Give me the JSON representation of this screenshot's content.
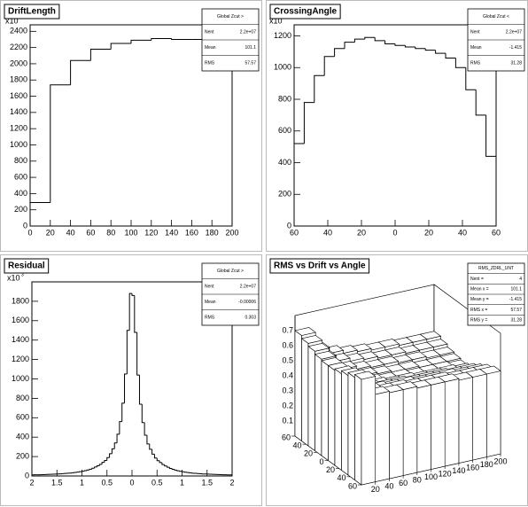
{
  "chart_data": [
    {
      "type": "histogram",
      "title": "DriftLength",
      "color": "#000000",
      "bins": [
        0,
        20,
        40,
        60,
        80,
        100,
        120,
        140,
        160,
        180,
        200
      ],
      "values": [
        290,
        1740,
        2040,
        2180,
        2250,
        2290,
        2310,
        2300,
        2300,
        2300
      ],
      "xlim": [
        0,
        200
      ],
      "xticks": [
        0,
        20,
        40,
        60,
        80,
        100,
        120,
        140,
        160,
        180,
        200
      ],
      "ylim": [
        0,
        2480
      ],
      "yticks": [
        0,
        200,
        400,
        600,
        800,
        1000,
        1200,
        1400,
        1600,
        1800,
        2000,
        2200,
        2400
      ],
      "y_multiplier": {
        "base": "x10",
        "exponent": "3"
      },
      "stats": {
        "title": "Global Zcut >",
        "rows": [
          [
            "Nent",
            "2.2e+07"
          ],
          [
            "Mean",
            "101.1"
          ],
          [
            "RMS",
            "57.57"
          ]
        ]
      }
    },
    {
      "type": "histogram",
      "title": "CrossingAngle",
      "color": "#000000",
      "bins": [
        -60,
        -54,
        -48,
        -42,
        -36,
        -30,
        -24,
        -18,
        -12,
        -6,
        0,
        6,
        12,
        18,
        24,
        30,
        36,
        42,
        48,
        54,
        60
      ],
      "values": [
        520,
        780,
        950,
        1070,
        1120,
        1160,
        1180,
        1190,
        1170,
        1150,
        1140,
        1130,
        1120,
        1110,
        1090,
        1060,
        1000,
        860,
        700,
        440
      ],
      "xlim": [
        -60,
        60
      ],
      "xticks": [
        {
          "value": -60,
          "label": "60"
        },
        {
          "value": -40,
          "label": "40"
        },
        {
          "value": -20,
          "label": "20"
        },
        0,
        20,
        40,
        60
      ],
      "ylim": [
        0,
        1270
      ],
      "yticks": [
        0,
        200,
        400,
        600,
        800,
        1000,
        1200
      ],
      "y_multiplier": {
        "base": "x10",
        "exponent": "3"
      },
      "stats": {
        "title": "Global Zcut <",
        "rows": [
          [
            "Nent",
            "2.2e+07"
          ],
          [
            "Mean",
            "-1.415"
          ],
          [
            "RMS",
            "31.28"
          ]
        ]
      }
    },
    {
      "type": "histogram",
      "title": "Residual",
      "color": "#000000",
      "bins": [
        -2,
        -1.95,
        -1.9,
        -1.85,
        -1.8,
        -1.75,
        -1.7,
        -1.65,
        -1.6,
        -1.55,
        -1.5,
        -1.45,
        -1.4,
        -1.35,
        -1.3,
        -1.25,
        -1.2,
        -1.15,
        -1.1,
        -1.05,
        -1,
        -0.95,
        -0.9,
        -0.85,
        -0.8,
        -0.75,
        -0.7,
        -0.65,
        -0.6,
        -0.55,
        -0.5,
        -0.45,
        -0.4,
        -0.35,
        -0.3,
        -0.25,
        -0.2,
        -0.15,
        -0.1,
        -0.05,
        0,
        0.05,
        0.1,
        0.15,
        0.2,
        0.25,
        0.3,
        0.35,
        0.4,
        0.45,
        0.5,
        0.55,
        0.6,
        0.65,
        0.7,
        0.75,
        0.8,
        0.85,
        0.9,
        0.95,
        1,
        1.05,
        1.1,
        1.15,
        1.2,
        1.25,
        1.3,
        1.35,
        1.4,
        1.45,
        1.5,
        1.55,
        1.6,
        1.65,
        1.7,
        1.75,
        1.8,
        1.85,
        1.9,
        1.95,
        2
      ],
      "values": [
        11,
        12,
        12,
        13,
        14,
        15,
        16,
        17,
        18,
        19,
        20,
        22,
        24,
        26,
        28,
        30,
        33,
        36,
        40,
        44,
        49,
        55,
        62,
        70,
        80,
        92,
        105,
        120,
        140,
        160,
        190,
        230,
        280,
        340,
        430,
        560,
        750,
        1050,
        1500,
        1880,
        1860,
        1480,
        1040,
        740,
        550,
        420,
        330,
        275,
        225,
        185,
        158,
        138,
        118,
        103,
        90,
        78,
        69,
        61,
        54,
        48,
        43,
        39,
        35,
        32,
        29,
        27,
        25,
        23,
        21,
        20,
        19,
        18,
        17,
        16,
        15,
        14,
        13,
        12,
        11,
        11
      ],
      "xlim": [
        -2,
        2
      ],
      "xticks": [
        {
          "value": -2,
          "label": "2"
        },
        {
          "value": -1.5,
          "label": "1.5"
        },
        {
          "value": -1,
          "label": "1"
        },
        {
          "value": -0.5,
          "label": "0.5"
        },
        0,
        0.5,
        1,
        1.5,
        2
      ],
      "ylim": [
        0,
        2000
      ],
      "yticks": [
        0,
        200,
        400,
        600,
        800,
        1000,
        1200,
        1400,
        1600,
        1800
      ],
      "y_multiplier": {
        "base": "x10",
        "exponent": "3"
      },
      "stats": {
        "title": "Global Zcut >",
        "rows": [
          [
            "Nent",
            "2.2e+07"
          ],
          [
            "Mean",
            "-0.00006"
          ],
          [
            "RMS",
            "0.303"
          ]
        ]
      }
    },
    {
      "type": "lego",
      "title": "RMS vs Drift vs Angle",
      "color": "#ffffff",
      "x_bins": [
        0,
        20,
        40,
        60,
        80,
        100,
        120,
        140,
        160,
        180,
        200
      ],
      "y_bins": [
        -60,
        -48,
        -36,
        -24,
        -12,
        0,
        12,
        24,
        36,
        48,
        60
      ],
      "z": [
        [
          0.7,
          0.58,
          0.57,
          0.57,
          0.56,
          0.56,
          0.56,
          0.55,
          0.55,
          0.55
        ],
        [
          0.68,
          0.57,
          0.55,
          0.55,
          0.54,
          0.54,
          0.54,
          0.53,
          0.53,
          0.53
        ],
        [
          0.66,
          0.55,
          0.53,
          0.52,
          0.52,
          0.51,
          0.51,
          0.51,
          0.5,
          0.5
        ],
        [
          0.64,
          0.53,
          0.5,
          0.49,
          0.49,
          0.48,
          0.48,
          0.48,
          0.47,
          0.47
        ],
        [
          0.63,
          0.51,
          0.48,
          0.47,
          0.46,
          0.46,
          0.45,
          0.45,
          0.45,
          0.44
        ],
        [
          0.63,
          0.51,
          0.47,
          0.46,
          0.45,
          0.45,
          0.44,
          0.44,
          0.44,
          0.43
        ],
        [
          0.64,
          0.52,
          0.48,
          0.47,
          0.46,
          0.45,
          0.45,
          0.44,
          0.44,
          0.44
        ],
        [
          0.66,
          0.54,
          0.5,
          0.48,
          0.47,
          0.47,
          0.46,
          0.46,
          0.45,
          0.45
        ],
        [
          0.68,
          0.56,
          0.52,
          0.5,
          0.49,
          0.48,
          0.48,
          0.47,
          0.47,
          0.47
        ],
        [
          0.7,
          0.58,
          0.54,
          0.52,
          0.51,
          0.5,
          0.5,
          0.49,
          0.49,
          0.49
        ]
      ],
      "xlim": [
        0,
        200
      ],
      "xticks": [
        20,
        40,
        60,
        80,
        100,
        120,
        140,
        160,
        180,
        200
      ],
      "ylim": [
        -60,
        60
      ],
      "yticks": [
        {
          "value": -60,
          "label": "60"
        },
        {
          "value": -40,
          "label": "40"
        },
        {
          "value": -20,
          "label": "20"
        },
        0,
        20,
        40,
        60
      ],
      "zlim": [
        0,
        0.8
      ],
      "zticks": [
        0.1,
        0.2,
        0.3,
        0.4,
        0.5,
        0.6,
        0.7
      ],
      "stats": {
        "title": "RMS_ZDRL_UNT",
        "rows": [
          [
            "Nent =",
            "4"
          ],
          [
            "Mean x =",
            "101.1"
          ],
          [
            "Mean y =",
            "-1.415"
          ],
          [
            "RMS x =",
            "57.57"
          ],
          [
            "RMS y =",
            "31.28"
          ]
        ]
      }
    }
  ]
}
